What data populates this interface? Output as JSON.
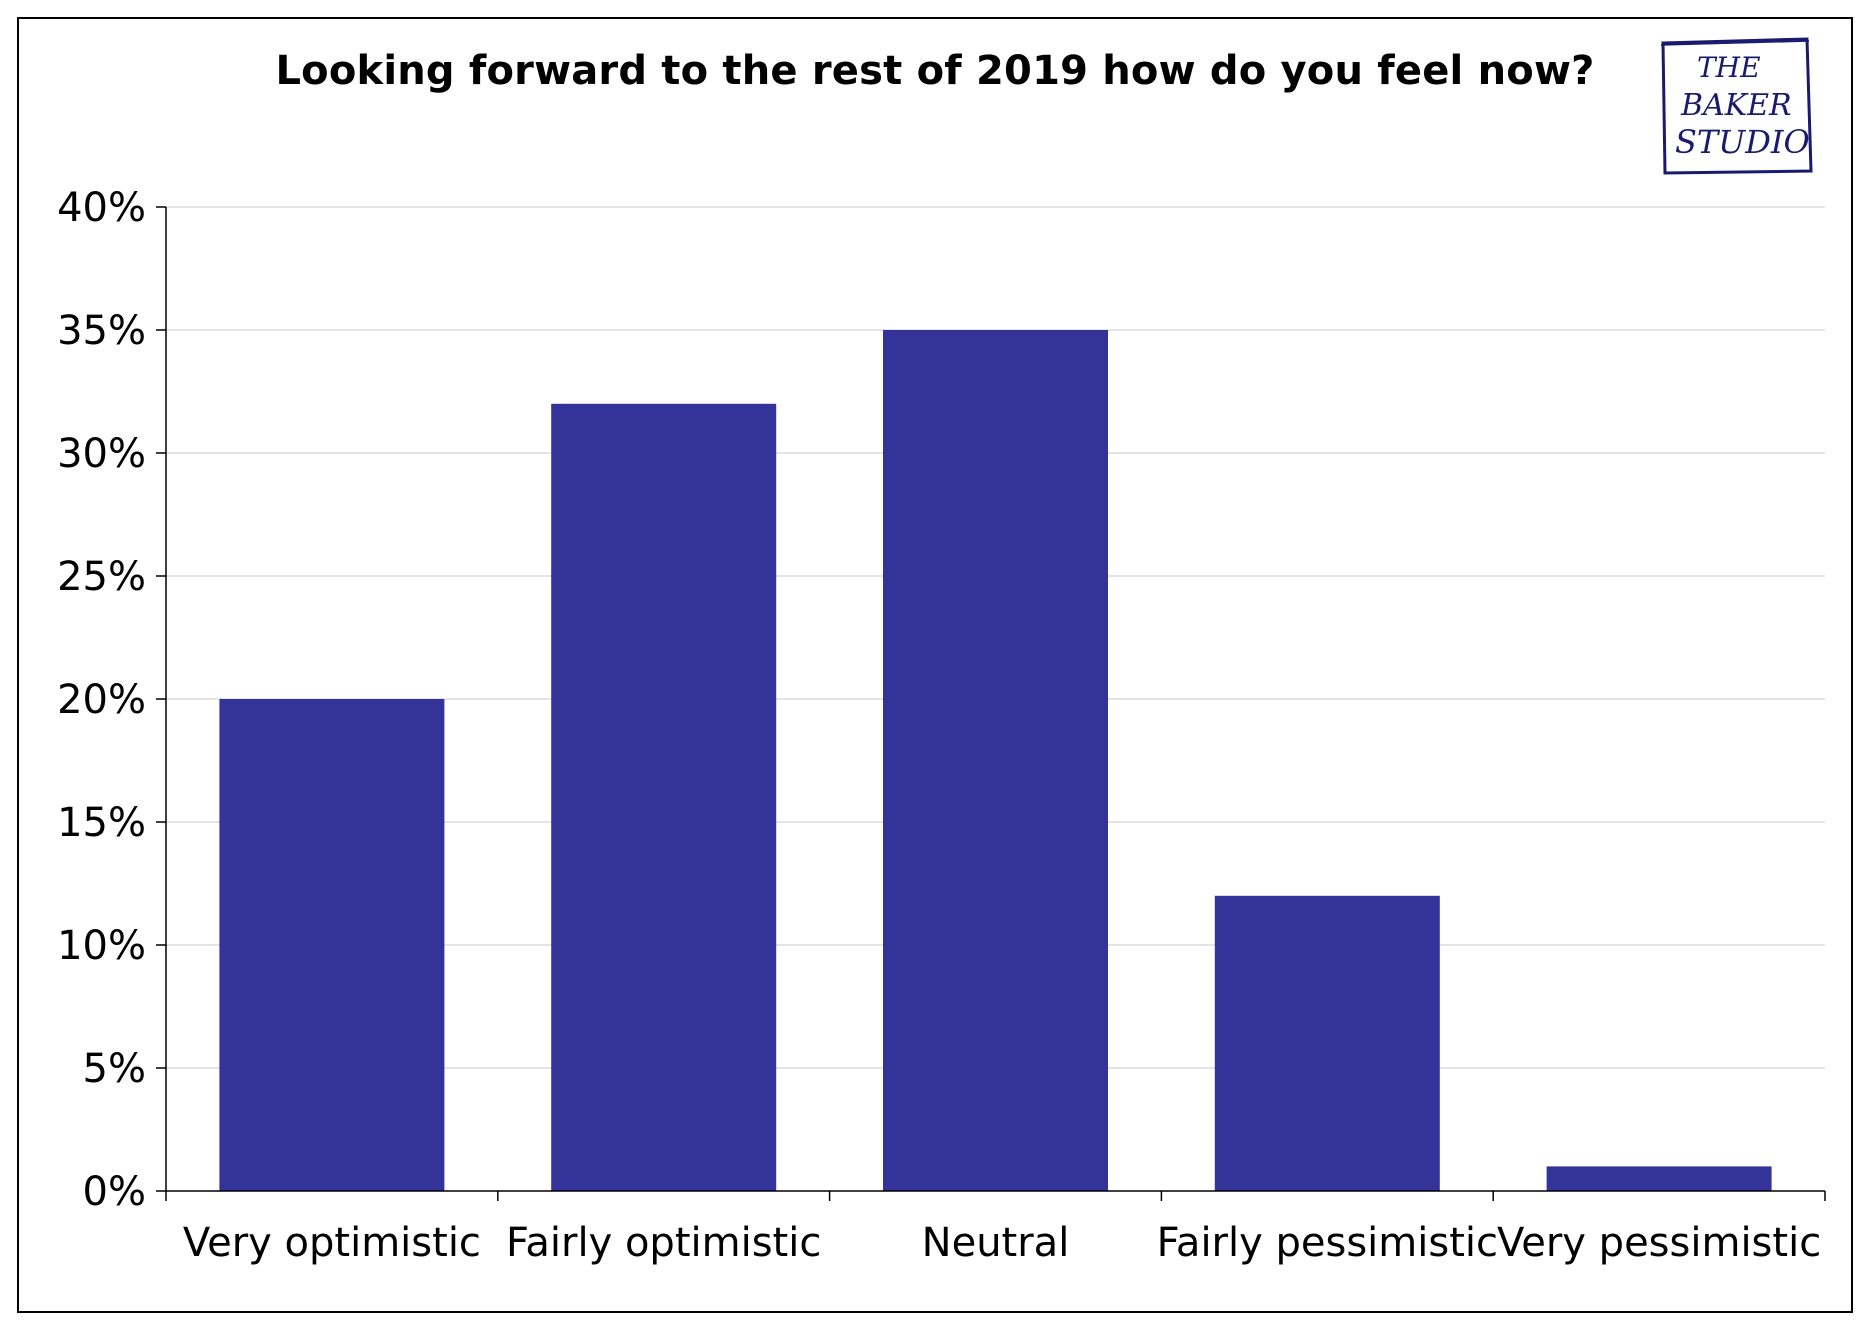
{
  "chart_data": {
    "type": "bar",
    "title": "Looking forward to the rest of 2019 how do you feel now?",
    "xlabel": "",
    "ylabel": "",
    "categories": [
      "Very optimistic",
      "Fairly optimistic",
      "Neutral",
      "Fairly pessimistic",
      "Very pessimistic"
    ],
    "values": [
      20,
      32,
      35,
      12,
      1
    ],
    "value_unit": "%",
    "ylim": [
      0,
      40
    ],
    "yticks": [
      "0%",
      "5%",
      "10%",
      "15%",
      "20%",
      "25%",
      "30%",
      "35%",
      "40%"
    ],
    "grid": true,
    "legend": "none",
    "bar_color": "#333399"
  },
  "logo": {
    "text_lines": [
      "THE",
      "BAKER",
      "STUDIO"
    ]
  }
}
